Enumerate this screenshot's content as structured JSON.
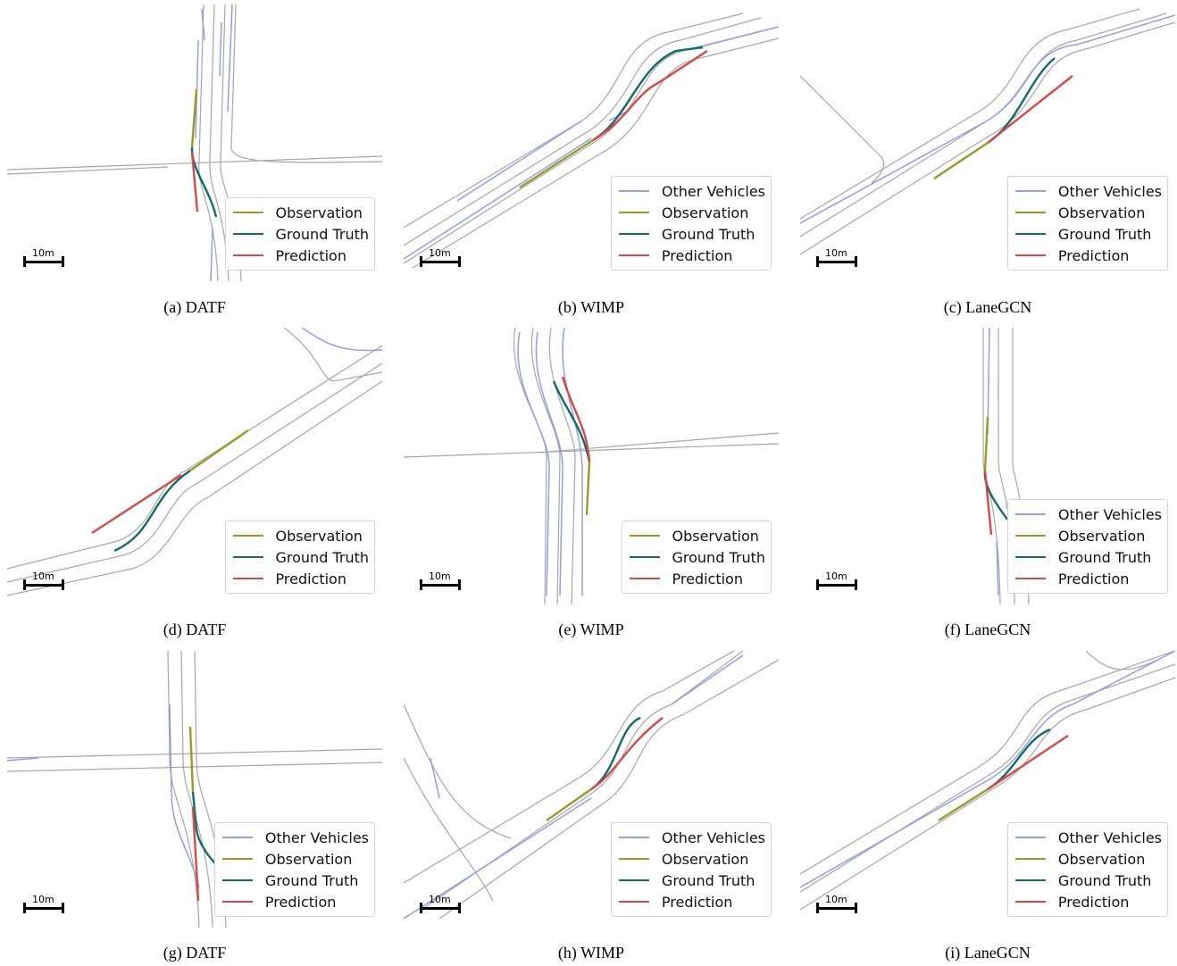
{
  "colors": {
    "lane": "#a6a6a6",
    "other_vehicles": "#8f9fe8",
    "observation": "#9a9a25",
    "ground_truth": "#126a6a",
    "prediction": "#d94848"
  },
  "scale_label": "10m",
  "legend_labels": {
    "other": "Other Vehicles",
    "obs": "Observation",
    "gt": "Ground Truth",
    "pred": "Prediction"
  },
  "panels": [
    {
      "caption": "(a)  DATF",
      "legend": [
        "obs",
        "gt",
        "pred"
      ]
    },
    {
      "caption": "(b)  WIMP",
      "legend": [
        "other",
        "obs",
        "gt",
        "pred"
      ]
    },
    {
      "caption": "(c)  LaneGCN",
      "legend": [
        "other",
        "obs",
        "gt",
        "pred"
      ]
    },
    {
      "caption": "(d)  DATF",
      "legend": [
        "obs",
        "gt",
        "pred"
      ]
    },
    {
      "caption": "(e)  WIMP",
      "legend": [
        "obs",
        "gt",
        "pred"
      ]
    },
    {
      "caption": "(f)  LaneGCN",
      "legend": [
        "other",
        "obs",
        "gt",
        "pred"
      ]
    },
    {
      "caption": "(g)  DATF",
      "legend": [
        "other",
        "obs",
        "gt",
        "pred"
      ]
    },
    {
      "caption": "(h)  WIMP",
      "legend": [
        "other",
        "obs",
        "gt",
        "pred"
      ]
    },
    {
      "caption": "(i)  LaneGCN",
      "legend": [
        "other",
        "obs",
        "gt",
        "pred"
      ]
    }
  ]
}
